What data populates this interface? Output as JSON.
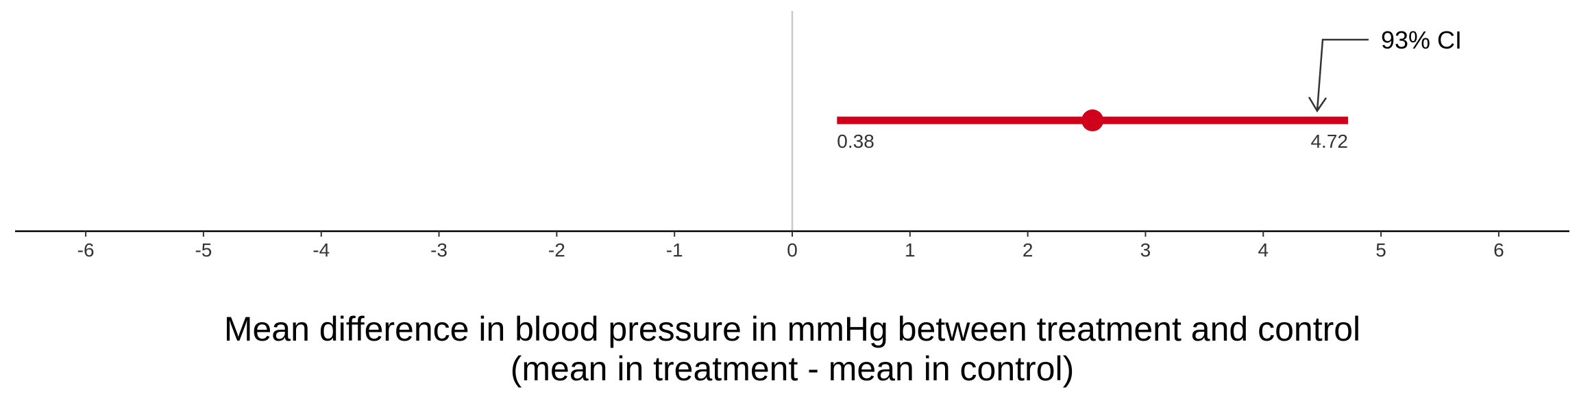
{
  "chart_data": {
    "type": "scatter",
    "title": "",
    "xlabel_line1": "Mean difference in blood pressure in mmHg between treatment and control",
    "xlabel_line2": "(mean in treatment - mean in control)",
    "ylabel": "",
    "xlim": [
      -6.6,
      6.6
    ],
    "xticks": [
      -6,
      -5,
      -4,
      -3,
      -2,
      -1,
      0,
      1,
      2,
      3,
      4,
      5,
      6
    ],
    "reference_line": 0,
    "point_estimate": 2.55,
    "ci_lower": 0.38,
    "ci_upper": 4.72,
    "ci_lower_label": "0.38",
    "ci_upper_label": "4.72",
    "ci_annotation": "93% CI",
    "grid": false,
    "colors": {
      "interval": "#d0021b",
      "reference": "#c8c8c8",
      "axis": "#000000"
    }
  }
}
